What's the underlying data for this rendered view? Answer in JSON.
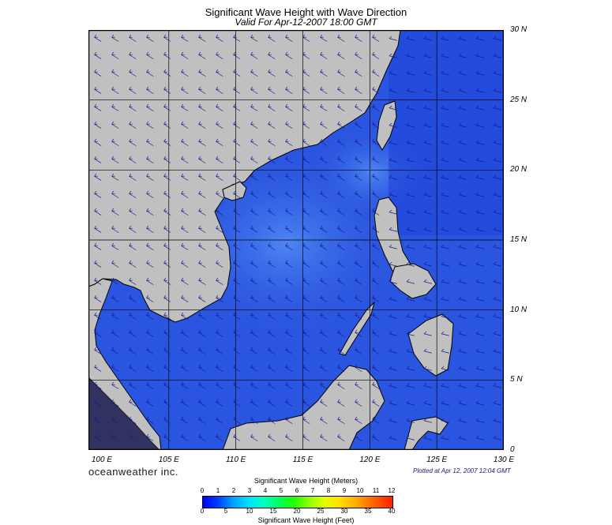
{
  "title": "Significant Wave Height with Wave Direction",
  "subtitle": "Valid For Apr-12-2007 18:00 GMT",
  "lat_labels": [
    "30 N",
    "25 N",
    "20 N",
    "15 N",
    "10 N",
    "5 N",
    "0"
  ],
  "lon_labels": [
    "100 E",
    "105 E",
    "110 E",
    "115 E",
    "120 E",
    "125 E",
    "130 E"
  ],
  "lat_range": [
    0,
    30
  ],
  "lon_range": [
    99,
    130
  ],
  "brand": "oceanweather inc.",
  "plotted": "Plotted at Apr 12, 2007 12:04 GMT",
  "colorbar": {
    "meters_title": "Significant Wave Height (Meters)",
    "feet_title": "Significant Wave Height (Feet)",
    "meters_ticks": [
      "0",
      "1",
      "2",
      "3",
      "4",
      "5",
      "6",
      "7",
      "8",
      "9",
      "10",
      "11",
      "12"
    ],
    "feet_ticks": [
      "0",
      "5",
      "10",
      "15",
      "20",
      "25",
      "30",
      "35",
      "40"
    ]
  },
  "colors": {
    "ocean": "#2a55e0",
    "land": "#c0c0c0",
    "arrow": "#1a1a8a"
  }
}
